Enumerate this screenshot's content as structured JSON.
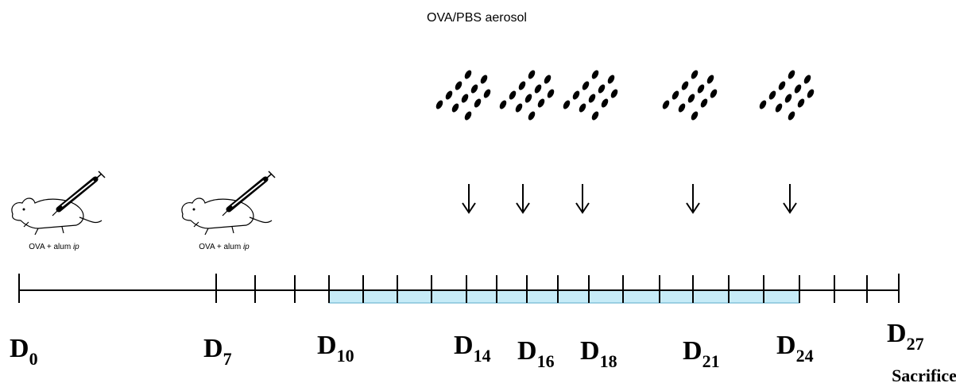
{
  "title": "OVA/PBS aerosol",
  "injections": [
    {
      "text": "OVA + alum",
      "route": "ip"
    },
    {
      "text": "OVA + alum",
      "route": "ip"
    }
  ],
  "days": [
    {
      "letter": "D",
      "sub": "0"
    },
    {
      "letter": "D",
      "sub": "7"
    },
    {
      "letter": "D",
      "sub": "10"
    },
    {
      "letter": "D",
      "sub": "14"
    },
    {
      "letter": "D",
      "sub": "16"
    },
    {
      "letter": "D",
      "sub": "18"
    },
    {
      "letter": "D",
      "sub": "21"
    },
    {
      "letter": "D",
      "sub": "24"
    },
    {
      "letter": "D",
      "sub": "27"
    }
  ],
  "end_label": "Sacrifice"
}
